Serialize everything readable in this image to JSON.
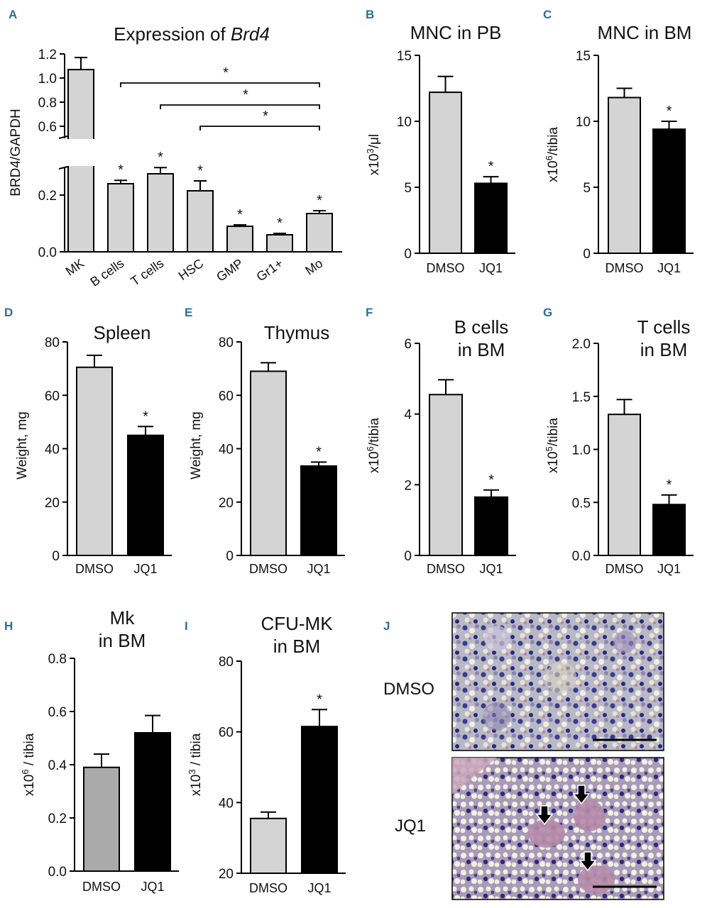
{
  "colors": {
    "light": "#d4d4d4",
    "dark": "#000000",
    "mid": "#aaaaaa",
    "label": "#2a6f97"
  },
  "chart_data": [
    {
      "id": "A",
      "type": "bar",
      "title_prefix": "Expression of ",
      "title_italic": "Brd4",
      "ylabel": "BRD4/GAPDH",
      "broken_axis": true,
      "lower_ylim": [
        0,
        0.3
      ],
      "lower_ticks": [
        "0.0",
        "0.2"
      ],
      "upper_ylim": [
        0.5,
        1.2
      ],
      "upper_ticks": [
        "0.6",
        "0.8",
        "1.0",
        "1.2"
      ],
      "categories": [
        "MK",
        "B cells",
        "T cells",
        "HSC",
        "GMP",
        "Gr1+",
        "Mo"
      ],
      "values": [
        1.07,
        0.24,
        0.275,
        0.215,
        0.09,
        0.06,
        0.135
      ],
      "errors": [
        0.1,
        0.012,
        0.022,
        0.035,
        0.005,
        0.005,
        0.01
      ],
      "colors": [
        "light",
        "light",
        "light",
        "light",
        "light",
        "light",
        "light"
      ],
      "stars": [
        "",
        "*",
        "*",
        "*",
        "*",
        "*",
        "*"
      ],
      "brackets": [
        {
          "from": "B cells",
          "to": "Mo",
          "label": "*"
        },
        {
          "from": "T cells",
          "to": "Mo",
          "label": "*"
        },
        {
          "from": "HSC",
          "to": "Mo",
          "label": "*"
        }
      ]
    },
    {
      "id": "B",
      "type": "bar",
      "title_lines": [
        "MNC in PB"
      ],
      "ylabel_base": "x10",
      "ylabel_sup": "3",
      "ylabel_rest": "/μl",
      "ylim": [
        0,
        15
      ],
      "yticks": [
        "0",
        "5",
        "10",
        "15"
      ],
      "categories": [
        "DMSO",
        "JQ1"
      ],
      "values": [
        12.2,
        5.3
      ],
      "errors": [
        1.2,
        0.5
      ],
      "colors": [
        "light",
        "dark"
      ],
      "stars": [
        "",
        "*"
      ]
    },
    {
      "id": "C",
      "type": "bar",
      "title_lines": [
        "MNC in BM"
      ],
      "ylabel_base": "x10",
      "ylabel_sup": "6",
      "ylabel_rest": "/tibia",
      "ylim": [
        0,
        15
      ],
      "yticks": [
        "0",
        "5",
        "10",
        "15"
      ],
      "categories": [
        "DMSO",
        "JQ1"
      ],
      "values": [
        11.8,
        9.4
      ],
      "errors": [
        0.7,
        0.6
      ],
      "colors": [
        "light",
        "dark"
      ],
      "stars": [
        "",
        "*"
      ]
    },
    {
      "id": "D",
      "type": "bar",
      "title_lines": [
        "Spleen"
      ],
      "ylabel_base": "Weight, mg",
      "ylabel_sup": "",
      "ylabel_rest": "",
      "ylim": [
        0,
        80
      ],
      "yticks": [
        "0",
        "20",
        "40",
        "60",
        "80"
      ],
      "categories": [
        "DMSO",
        "JQ1"
      ],
      "values": [
        70.5,
        45
      ],
      "errors": [
        4.5,
        3.3
      ],
      "colors": [
        "light",
        "dark"
      ],
      "stars": [
        "",
        "*"
      ]
    },
    {
      "id": "E",
      "type": "bar",
      "title_lines": [
        "Thymus"
      ],
      "ylabel_base": "Weight, mg",
      "ylabel_sup": "",
      "ylabel_rest": "",
      "ylim": [
        0,
        80
      ],
      "yticks": [
        "0",
        "20",
        "40",
        "60",
        "80"
      ],
      "categories": [
        "DMSO",
        "JQ1"
      ],
      "values": [
        69,
        33.5
      ],
      "errors": [
        3.2,
        1.5
      ],
      "colors": [
        "light",
        "dark"
      ],
      "stars": [
        "",
        "*"
      ]
    },
    {
      "id": "F",
      "type": "bar",
      "title_lines": [
        "B cells",
        "in BM"
      ],
      "ylabel_base": "x10",
      "ylabel_sup": "6",
      "ylabel_rest": "/tibia",
      "ylim": [
        0,
        6
      ],
      "yticks": [
        "0",
        "2",
        "4",
        "6"
      ],
      "categories": [
        "DMSO",
        "JQ1"
      ],
      "values": [
        4.55,
        1.65
      ],
      "errors": [
        0.42,
        0.2
      ],
      "colors": [
        "light",
        "dark"
      ],
      "stars": [
        "",
        "*"
      ]
    },
    {
      "id": "G",
      "type": "bar",
      "title_lines": [
        "T cells",
        "in BM"
      ],
      "ylabel_base": "x10",
      "ylabel_sup": "5",
      "ylabel_rest": "/tibia",
      "ylim": [
        0,
        2.0
      ],
      "yticks": [
        "0.0",
        "0.5",
        "1.0",
        "1.5",
        "2.0"
      ],
      "categories": [
        "DMSO",
        "JQ1"
      ],
      "values": [
        1.33,
        0.48
      ],
      "errors": [
        0.14,
        0.09
      ],
      "colors": [
        "light",
        "dark"
      ],
      "stars": [
        "",
        "*"
      ]
    },
    {
      "id": "H",
      "type": "bar",
      "title_lines": [
        "Mk",
        "in BM"
      ],
      "ylabel_base": "x10",
      "ylabel_sup": "6",
      "ylabel_rest": " / tibia",
      "ylim": [
        0,
        0.8
      ],
      "yticks": [
        "0.0",
        "0.2",
        "0.4",
        "0.6",
        "0.8"
      ],
      "categories": [
        "DMSO",
        "JQ1"
      ],
      "values": [
        0.39,
        0.52
      ],
      "errors": [
        0.05,
        0.065
      ],
      "colors": [
        "mid",
        "dark"
      ],
      "stars": [
        "",
        ""
      ]
    },
    {
      "id": "I",
      "type": "bar",
      "title_lines": [
        "CFU-MK",
        "in BM"
      ],
      "ylabel_base": "x10",
      "ylabel_sup": "3",
      "ylabel_rest": " / tibia",
      "ylim": [
        20,
        80
      ],
      "yticks": [
        "20",
        "40",
        "60",
        "80"
      ],
      "categories": [
        "DMSO",
        "JQ1"
      ],
      "values": [
        35.5,
        61.5
      ],
      "errors": [
        1.8,
        4.8
      ],
      "colors": [
        "light",
        "dark"
      ],
      "stars": [
        "",
        "*"
      ]
    }
  ],
  "panel_j": {
    "label": "J",
    "rows": [
      "DMSO",
      "JQ1"
    ]
  }
}
